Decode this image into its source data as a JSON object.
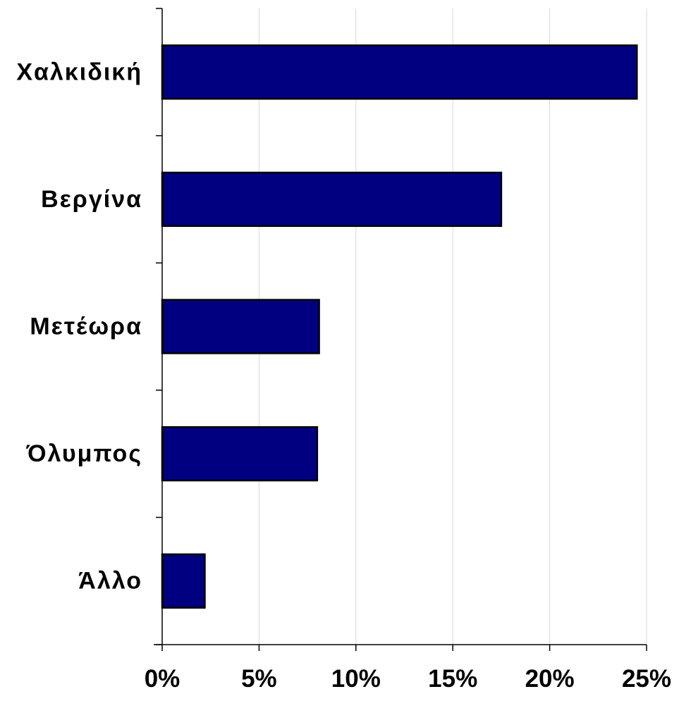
{
  "chart_data": {
    "type": "bar",
    "orientation": "horizontal",
    "categories": [
      "Χαλκιδική",
      "Βεργίνα",
      "Μετέωρα",
      "Όλυμπος",
      "Άλλο"
    ],
    "values": [
      24.5,
      17.5,
      8.1,
      8.0,
      2.2
    ],
    "value_unit": "%",
    "xlim": [
      0,
      25
    ],
    "xticks": [
      0,
      5,
      10,
      15,
      20,
      25
    ],
    "xtick_labels": [
      "0%",
      "5%",
      "10%",
      "15%",
      "20%",
      "25%"
    ],
    "title": "",
    "xlabel": "",
    "ylabel": "",
    "grid": "vertical",
    "legend": "none",
    "colors": {
      "bar_fill": "#000080",
      "bar_stroke": "#000000",
      "grid": "#d9d9d9",
      "axis": "#000000"
    }
  }
}
